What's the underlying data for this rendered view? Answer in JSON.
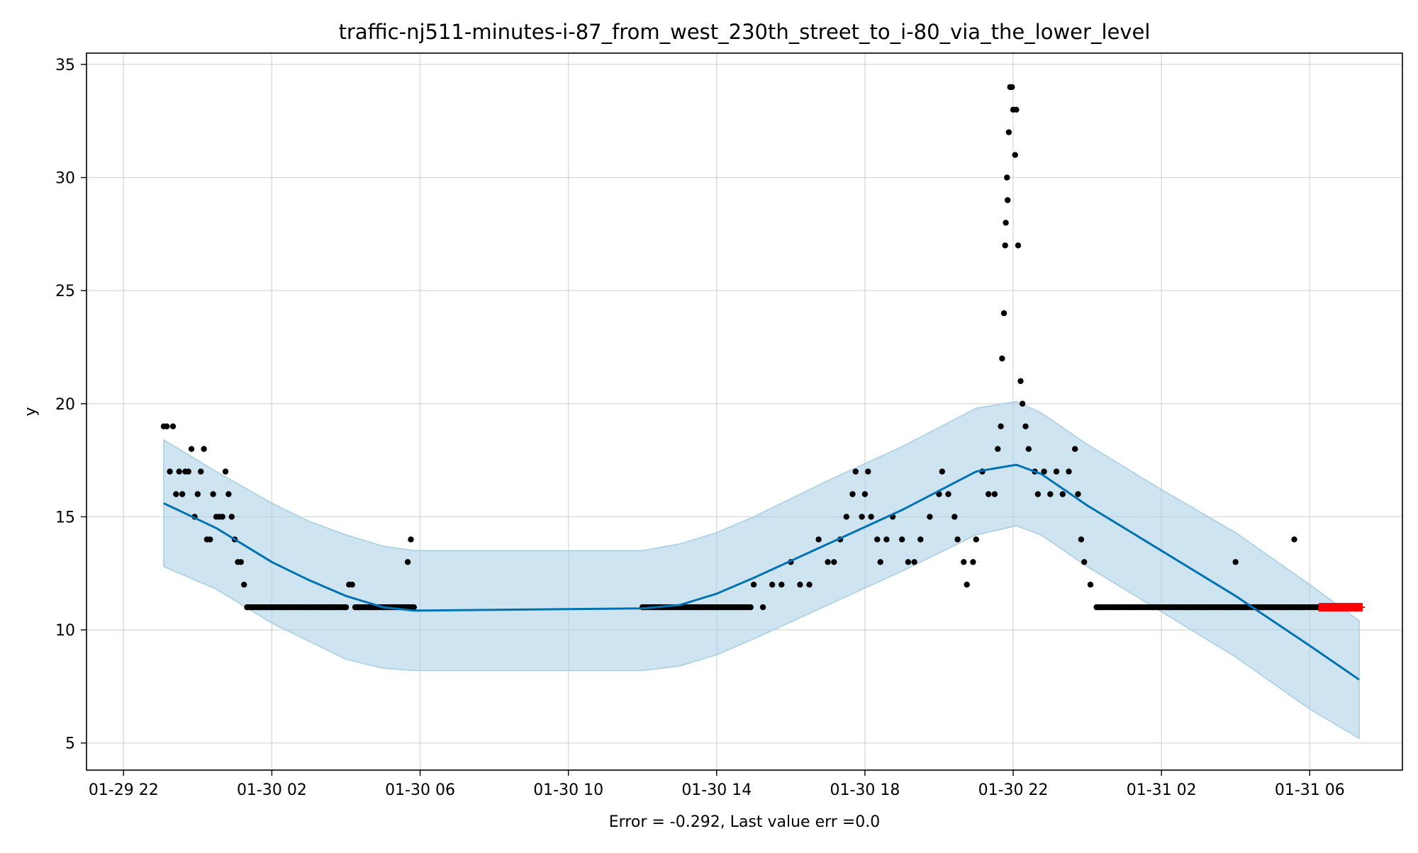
{
  "chart_data": {
    "type": "scatter",
    "title": "traffic-nj511-minutes-i-87_from_west_230th_street_to_i-80_via_the_lower_level",
    "xlabel": "Error = -0.292, Last value err =0.0",
    "ylabel": "y",
    "x_axis": {
      "kind": "datetime",
      "range": [
        "2022-01-29 21:00",
        "2022-01-31 08:30"
      ],
      "ticks": [
        {
          "value": "2022-01-29 22:00",
          "label": "01-29 22"
        },
        {
          "value": "2022-01-30 02:00",
          "label": "01-30 02"
        },
        {
          "value": "2022-01-30 06:00",
          "label": "01-30 06"
        },
        {
          "value": "2022-01-30 10:00",
          "label": "01-30 10"
        },
        {
          "value": "2022-01-30 14:00",
          "label": "01-30 14"
        },
        {
          "value": "2022-01-30 18:00",
          "label": "01-30 18"
        },
        {
          "value": "2022-01-30 22:00",
          "label": "01-30 22"
        },
        {
          "value": "2022-01-31 02:00",
          "label": "01-31 02"
        },
        {
          "value": "2022-01-31 06:00",
          "label": "01-31 06"
        }
      ]
    },
    "y_axis": {
      "range": [
        3.8,
        35.5
      ],
      "ticks": [
        {
          "value": 5,
          "label": "5"
        },
        {
          "value": 10,
          "label": "10"
        },
        {
          "value": 15,
          "label": "15"
        },
        {
          "value": 20,
          "label": "20"
        },
        {
          "value": 25,
          "label": "25"
        },
        {
          "value": 30,
          "label": "30"
        },
        {
          "value": 35,
          "label": "35"
        }
      ]
    },
    "grid": true,
    "colors": {
      "observed": "#000000",
      "forecast": "#0072b2",
      "interval": "#a6cee3",
      "future": "#ff0000"
    },
    "series": [
      {
        "role": "observed",
        "points": [
          [
            "2022-01-29 23:05",
            19
          ],
          [
            "2022-01-29 23:10",
            19
          ],
          [
            "2022-01-29 23:15",
            17
          ],
          [
            "2022-01-29 23:20",
            19
          ],
          [
            "2022-01-29 23:25",
            16
          ],
          [
            "2022-01-29 23:30",
            17
          ],
          [
            "2022-01-29 23:35",
            16
          ],
          [
            "2022-01-29 23:40",
            17
          ],
          [
            "2022-01-29 23:45",
            17
          ],
          [
            "2022-01-29 23:50",
            18
          ],
          [
            "2022-01-29 23:55",
            15
          ],
          [
            "2022-01-30 00:00",
            16
          ],
          [
            "2022-01-30 00:05",
            17
          ],
          [
            "2022-01-30 00:10",
            18
          ],
          [
            "2022-01-30 00:15",
            14
          ],
          [
            "2022-01-30 00:20",
            14
          ],
          [
            "2022-01-30 00:25",
            16
          ],
          [
            "2022-01-30 00:30",
            15
          ],
          [
            "2022-01-30 00:35",
            15
          ],
          [
            "2022-01-30 00:40",
            15
          ],
          [
            "2022-01-30 00:45",
            17
          ],
          [
            "2022-01-30 00:50",
            16
          ],
          [
            "2022-01-30 00:55",
            15
          ],
          [
            "2022-01-30 01:00",
            14
          ],
          [
            "2022-01-30 01:05",
            13
          ],
          [
            "2022-01-30 01:10",
            13
          ],
          [
            "2022-01-30 01:15",
            12
          ],
          [
            "2022-01-30 01:20",
            11
          ],
          [
            "2022-01-30 01:40",
            11
          ],
          [
            "2022-01-30 02:00",
            11
          ],
          [
            "2022-01-30 02:20",
            11
          ],
          [
            "2022-01-30 02:40",
            11
          ],
          [
            "2022-01-30 03:00",
            11
          ],
          [
            "2022-01-30 03:20",
            11
          ],
          [
            "2022-01-30 03:40",
            11
          ],
          [
            "2022-01-30 04:00",
            11
          ],
          [
            "2022-01-30 04:05",
            12
          ],
          [
            "2022-01-30 04:10",
            12
          ],
          [
            "2022-01-30 04:20",
            11
          ],
          [
            "2022-01-30 04:40",
            11
          ],
          [
            "2022-01-30 05:00",
            11
          ],
          [
            "2022-01-30 05:20",
            11
          ],
          [
            "2022-01-30 05:40",
            13
          ],
          [
            "2022-01-30 05:45",
            14
          ],
          [
            "2022-01-30 05:50",
            11
          ],
          [
            "2022-01-30 12:00",
            11
          ],
          [
            "2022-01-30 12:30",
            11
          ],
          [
            "2022-01-30 13:00",
            11
          ],
          [
            "2022-01-30 13:30",
            11
          ],
          [
            "2022-01-30 14:00",
            11
          ],
          [
            "2022-01-30 14:30",
            11
          ],
          [
            "2022-01-30 14:55",
            11
          ],
          [
            "2022-01-30 15:00",
            12
          ],
          [
            "2022-01-30 15:15",
            11
          ],
          [
            "2022-01-30 15:30",
            12
          ],
          [
            "2022-01-30 15:45",
            12
          ],
          [
            "2022-01-30 16:00",
            13
          ],
          [
            "2022-01-30 16:15",
            12
          ],
          [
            "2022-01-30 16:30",
            12
          ],
          [
            "2022-01-30 16:45",
            14
          ],
          [
            "2022-01-30 17:00",
            13
          ],
          [
            "2022-01-30 17:10",
            13
          ],
          [
            "2022-01-30 17:20",
            14
          ],
          [
            "2022-01-30 17:30",
            15
          ],
          [
            "2022-01-30 17:40",
            16
          ],
          [
            "2022-01-30 17:45",
            17
          ],
          [
            "2022-01-30 17:55",
            15
          ],
          [
            "2022-01-30 18:00",
            16
          ],
          [
            "2022-01-30 18:05",
            17
          ],
          [
            "2022-01-30 18:10",
            15
          ],
          [
            "2022-01-30 18:20",
            14
          ],
          [
            "2022-01-30 18:25",
            13
          ],
          [
            "2022-01-30 18:35",
            14
          ],
          [
            "2022-01-30 18:45",
            15
          ],
          [
            "2022-01-30 19:00",
            14
          ],
          [
            "2022-01-30 19:10",
            13
          ],
          [
            "2022-01-30 19:20",
            13
          ],
          [
            "2022-01-30 19:30",
            14
          ],
          [
            "2022-01-30 19:45",
            15
          ],
          [
            "2022-01-30 20:00",
            16
          ],
          [
            "2022-01-30 20:05",
            17
          ],
          [
            "2022-01-30 20:15",
            16
          ],
          [
            "2022-01-30 20:25",
            15
          ],
          [
            "2022-01-30 20:30",
            14
          ],
          [
            "2022-01-30 20:40",
            13
          ],
          [
            "2022-01-30 20:45",
            12
          ],
          [
            "2022-01-30 20:55",
            13
          ],
          [
            "2022-01-30 21:00",
            14
          ],
          [
            "2022-01-30 21:10",
            17
          ],
          [
            "2022-01-30 21:20",
            16
          ],
          [
            "2022-01-30 21:30",
            16
          ],
          [
            "2022-01-30 21:35",
            18
          ],
          [
            "2022-01-30 21:40",
            19
          ],
          [
            "2022-01-30 21:42",
            22
          ],
          [
            "2022-01-30 21:45",
            24
          ],
          [
            "2022-01-30 21:47",
            27
          ],
          [
            "2022-01-30 21:48",
            28
          ],
          [
            "2022-01-30 21:50",
            30
          ],
          [
            "2022-01-30 21:51",
            29
          ],
          [
            "2022-01-30 21:53",
            32
          ],
          [
            "2022-01-30 21:55",
            34
          ],
          [
            "2022-01-30 21:58",
            34
          ],
          [
            "2022-01-30 22:00",
            33
          ],
          [
            "2022-01-30 22:03",
            31
          ],
          [
            "2022-01-30 22:05",
            33
          ],
          [
            "2022-01-30 22:08",
            27
          ],
          [
            "2022-01-30 22:12",
            21
          ],
          [
            "2022-01-30 22:15",
            20
          ],
          [
            "2022-01-30 22:20",
            19
          ],
          [
            "2022-01-30 22:25",
            18
          ],
          [
            "2022-01-30 22:35",
            17
          ],
          [
            "2022-01-30 22:40",
            16
          ],
          [
            "2022-01-30 22:50",
            17
          ],
          [
            "2022-01-30 23:00",
            16
          ],
          [
            "2022-01-30 23:10",
            17
          ],
          [
            "2022-01-30 23:20",
            16
          ],
          [
            "2022-01-30 23:30",
            17
          ],
          [
            "2022-01-30 23:40",
            18
          ],
          [
            "2022-01-30 23:45",
            16
          ],
          [
            "2022-01-30 23:50",
            14
          ],
          [
            "2022-01-30 23:55",
            13
          ],
          [
            "2022-01-31 00:05",
            12
          ],
          [
            "2022-01-31 00:15",
            11
          ],
          [
            "2022-01-31 00:45",
            11
          ],
          [
            "2022-01-31 01:15",
            11
          ],
          [
            "2022-01-31 01:45",
            11
          ],
          [
            "2022-01-31 02:15",
            11
          ],
          [
            "2022-01-31 02:45",
            11
          ],
          [
            "2022-01-31 03:15",
            11
          ],
          [
            "2022-01-31 03:45",
            11
          ],
          [
            "2022-01-31 04:00",
            13
          ],
          [
            "2022-01-31 04:15",
            11
          ],
          [
            "2022-01-31 04:45",
            11
          ],
          [
            "2022-01-31 05:15",
            11
          ],
          [
            "2022-01-31 05:35",
            14
          ],
          [
            "2022-01-31 05:45",
            11
          ],
          [
            "2022-01-31 06:15",
            11
          ]
        ]
      },
      {
        "role": "observed-run",
        "runs": [
          {
            "start": "2022-01-30 01:20",
            "end": "2022-01-30 04:00",
            "value": 11
          },
          {
            "start": "2022-01-30 04:15",
            "end": "2022-01-30 05:50",
            "value": 11
          },
          {
            "start": "2022-01-30 12:00",
            "end": "2022-01-30 14:55",
            "value": 11
          },
          {
            "start": "2022-01-31 00:15",
            "end": "2022-01-31 06:20",
            "value": 11
          }
        ]
      },
      {
        "role": "future",
        "start": "2022-01-31 06:20",
        "end": "2022-01-31 07:20",
        "value": 11
      },
      {
        "role": "forecast",
        "points": [
          [
            "2022-01-29 23:05",
            15.6
          ],
          [
            "2022-01-30 00:30",
            14.5
          ],
          [
            "2022-01-30 02:00",
            13.0
          ],
          [
            "2022-01-30 03:00",
            12.2
          ],
          [
            "2022-01-30 04:00",
            11.5
          ],
          [
            "2022-01-30 05:00",
            11.0
          ],
          [
            "2022-01-30 05:50",
            10.85
          ],
          [
            "2022-01-30 12:00",
            10.95
          ],
          [
            "2022-01-30 13:00",
            11.1
          ],
          [
            "2022-01-30 14:00",
            11.6
          ],
          [
            "2022-01-30 15:00",
            12.3
          ],
          [
            "2022-01-30 17:00",
            13.8
          ],
          [
            "2022-01-30 19:00",
            15.3
          ],
          [
            "2022-01-30 21:00",
            17.0
          ],
          [
            "2022-01-30 22:05",
            17.3
          ],
          [
            "2022-01-30 22:45",
            16.9
          ],
          [
            "2022-01-31 00:00",
            15.5
          ],
          [
            "2022-01-31 02:00",
            13.5
          ],
          [
            "2022-01-31 04:00",
            11.5
          ],
          [
            "2022-01-31 06:00",
            9.3
          ],
          [
            "2022-01-31 07:20",
            7.8
          ]
        ]
      },
      {
        "role": "interval",
        "upper": [
          [
            "2022-01-29 23:05",
            18.4
          ],
          [
            "2022-01-30 00:30",
            17.0
          ],
          [
            "2022-01-30 02:00",
            15.6
          ],
          [
            "2022-01-30 03:00",
            14.8
          ],
          [
            "2022-01-30 04:00",
            14.2
          ],
          [
            "2022-01-30 05:00",
            13.7
          ],
          [
            "2022-01-30 05:50",
            13.5
          ],
          [
            "2022-01-30 12:00",
            13.5
          ],
          [
            "2022-01-30 13:00",
            13.8
          ],
          [
            "2022-01-30 14:00",
            14.3
          ],
          [
            "2022-01-30 15:00",
            15.0
          ],
          [
            "2022-01-30 17:00",
            16.6
          ],
          [
            "2022-01-30 19:00",
            18.1
          ],
          [
            "2022-01-30 21:00",
            19.8
          ],
          [
            "2022-01-30 22:05",
            20.1
          ],
          [
            "2022-01-30 22:45",
            19.6
          ],
          [
            "2022-01-31 00:00",
            18.2
          ],
          [
            "2022-01-31 02:00",
            16.2
          ],
          [
            "2022-01-31 04:00",
            14.3
          ],
          [
            "2022-01-31 06:00",
            12.0
          ],
          [
            "2022-01-31 07:20",
            10.4
          ]
        ],
        "lower": [
          [
            "2022-01-29 23:05",
            12.8
          ],
          [
            "2022-01-30 00:30",
            11.8
          ],
          [
            "2022-01-30 02:00",
            10.3
          ],
          [
            "2022-01-30 03:00",
            9.5
          ],
          [
            "2022-01-30 04:00",
            8.7
          ],
          [
            "2022-01-30 05:00",
            8.3
          ],
          [
            "2022-01-30 05:50",
            8.2
          ],
          [
            "2022-01-30 12:00",
            8.2
          ],
          [
            "2022-01-30 13:00",
            8.4
          ],
          [
            "2022-01-30 14:00",
            8.9
          ],
          [
            "2022-01-30 15:00",
            9.6
          ],
          [
            "2022-01-30 17:00",
            11.1
          ],
          [
            "2022-01-30 19:00",
            12.6
          ],
          [
            "2022-01-30 21:00",
            14.2
          ],
          [
            "2022-01-30 22:05",
            14.6
          ],
          [
            "2022-01-30 22:45",
            14.2
          ],
          [
            "2022-01-31 00:00",
            12.8
          ],
          [
            "2022-01-31 02:00",
            10.8
          ],
          [
            "2022-01-31 04:00",
            8.8
          ],
          [
            "2022-01-31 06:00",
            6.5
          ],
          [
            "2022-01-31 07:20",
            5.2
          ]
        ]
      }
    ]
  }
}
